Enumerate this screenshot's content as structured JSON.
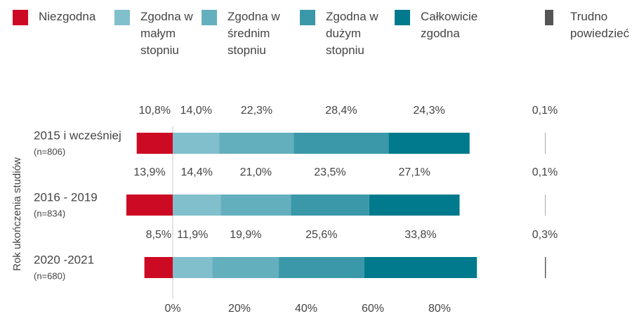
{
  "chart_data": {
    "type": "diverging-bar",
    "y_axis_label": "Rok ukończenia studiów",
    "categories": [
      "2015 i wcześniej",
      "2016 - 2019",
      "2020 -2021"
    ],
    "category_notes": [
      "(n=806)",
      "(n=834)",
      "(n=680)"
    ],
    "series": [
      {
        "name": "Niezgodna",
        "color": "#cc0a23",
        "side": "left",
        "values": [
          10.8,
          13.9,
          8.5
        ],
        "value_labels": [
          "10,8%",
          "13,9%",
          "8,5%"
        ]
      },
      {
        "name": "Zgodna w małym stopniu",
        "color": "#80bfcb",
        "side": "right",
        "values": [
          14.0,
          14.4,
          11.9
        ],
        "value_labels": [
          "14,0%",
          "14,4%",
          "11,9%"
        ]
      },
      {
        "name": "Zgodna w średnim stopniu",
        "color": "#63afbd",
        "side": "right",
        "values": [
          22.3,
          21.0,
          19.9
        ],
        "value_labels": [
          "22,3%",
          "21,0%",
          "19,9%"
        ]
      },
      {
        "name": "Zgodna w dużym stopniu",
        "color": "#3a98a8",
        "side": "right",
        "values": [
          28.4,
          23.5,
          25.6
        ],
        "value_labels": [
          "28,4%",
          "23,5%",
          "25,6%"
        ]
      },
      {
        "name": "Całkowicie zgodna",
        "color": "#007a8c",
        "side": "right",
        "values": [
          24.3,
          27.1,
          33.8
        ],
        "value_labels": [
          "24,3%",
          "27,1%",
          "33,8%"
        ]
      },
      {
        "name": "Trudno powiedzieć",
        "color": "#555555",
        "side": "separate",
        "values": [
          0.1,
          0.1,
          0.3
        ],
        "value_labels": [
          "0,1%",
          "0,1%",
          "0,3%"
        ]
      }
    ],
    "xlim": [
      -14,
      92
    ],
    "xticks": [
      {
        "value": 0,
        "label": "0%"
      },
      {
        "value": 20,
        "label": "20%"
      },
      {
        "value": 40,
        "label": "40%"
      },
      {
        "value": 60,
        "label": "60%"
      },
      {
        "value": 80,
        "label": "80%"
      }
    ]
  }
}
